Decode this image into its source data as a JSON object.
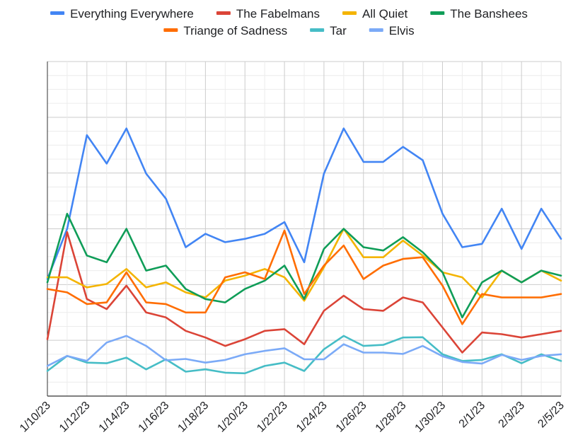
{
  "chart_data": {
    "type": "line",
    "title": "",
    "xlabel": "",
    "ylabel": "",
    "x": [
      "1/10/23",
      "1/11/23",
      "1/12/23",
      "1/13/23",
      "1/14/23",
      "1/15/23",
      "1/16/23",
      "1/17/23",
      "1/18/23",
      "1/19/23",
      "1/20/23",
      "1/21/23",
      "1/22/23",
      "1/23/23",
      "1/24/23",
      "1/25/23",
      "1/26/23",
      "1/27/23",
      "1/28/23",
      "1/29/23",
      "1/30/23",
      "1/31/23",
      "2/1/23",
      "2/2/23",
      "2/3/23",
      "2/4/23",
      "2/5/23"
    ],
    "x_tick_labels": [
      "1/10/23",
      "1/12/23",
      "1/14/23",
      "1/16/23",
      "1/18/23",
      "1/20/23",
      "1/22/23",
      "1/24/23",
      "1/26/23",
      "1/28/23",
      "1/30/23",
      "2/1/23",
      "2/3/23",
      "2/5/23"
    ],
    "y_tick_labels_shown": false,
    "ylim": [
      0,
      100
    ],
    "grid": true,
    "legend_position": "top",
    "series": [
      {
        "name": "Everything Everywhere",
        "color": "#4285f4",
        "values": [
          35,
          50,
          78,
          69.5,
          80,
          66.5,
          59,
          44.5,
          48.5,
          46,
          47,
          48.5,
          52,
          40,
          66.5,
          80,
          70,
          70,
          74.5,
          70.5,
          54.5,
          44.5,
          45.5,
          56,
          44,
          56,
          47
        ]
      },
      {
        "name": "The Fabelmans",
        "color": "#db4437",
        "values": [
          17,
          49,
          29,
          26,
          33,
          25,
          23.5,
          19.5,
          17.5,
          15,
          17,
          19.5,
          20,
          15.5,
          25.5,
          30,
          26,
          25.5,
          29.5,
          28,
          20.5,
          13,
          19,
          18.5,
          17.5,
          18.5,
          19.5
        ]
      },
      {
        "name": "All Quiet",
        "color": "#f4b400",
        "values": [
          35.5,
          35.5,
          32.5,
          33.5,
          38,
          32.5,
          34,
          31,
          29.5,
          34.5,
          36,
          38,
          35.5,
          28.5,
          38.5,
          50,
          41.5,
          41.5,
          46.5,
          42,
          37,
          35.5,
          29.5,
          37.5,
          34,
          37.5,
          34.5
        ]
      },
      {
        "name": "The Banshees",
        "color": "#0f9d58",
        "values": [
          34,
          54.5,
          42,
          40,
          50,
          37.5,
          39,
          32,
          29,
          28,
          32,
          34.5,
          39,
          29,
          44,
          50,
          44.5,
          43.5,
          47.5,
          43,
          37,
          23.5,
          34,
          37.5,
          34,
          37.5,
          36
        ]
      },
      {
        "name": "Triange of Sadness",
        "color": "#ff6d01",
        "values": [
          32,
          31,
          27.5,
          28,
          37,
          28,
          27.5,
          25,
          25,
          35.5,
          37,
          35,
          49.5,
          30.5,
          39,
          45,
          35,
          39,
          41,
          41.5,
          33,
          21.5,
          30.5,
          29.5,
          29.5,
          29.5,
          30.5
        ]
      },
      {
        "name": "Tar",
        "color": "#46bdc6",
        "values": [
          7.5,
          12,
          10,
          9.8,
          11.5,
          8,
          11,
          7.3,
          8,
          7,
          6.8,
          9,
          10,
          7.5,
          14,
          18,
          15,
          15.3,
          17.5,
          17.6,
          12.5,
          10.5,
          10.8,
          12.5,
          9.8,
          12.5,
          10.5
        ]
      },
      {
        "name": "Elvis",
        "color": "#7baaf7",
        "values": [
          9,
          12,
          10.5,
          16,
          18,
          15,
          10.7,
          11.1,
          10,
          10.8,
          12.5,
          13.5,
          14.3,
          11,
          11,
          15.5,
          13,
          13,
          12.6,
          15,
          11.9,
          10.2,
          9.7,
          12.3,
          10.8,
          12,
          12.5
        ]
      }
    ],
    "legend_rows": [
      [
        "Everything Everywhere",
        "The Fabelmans",
        "All Quiet",
        "The Banshees"
      ],
      [
        "Triange of Sadness",
        "Tar",
        "Elvis"
      ]
    ]
  }
}
